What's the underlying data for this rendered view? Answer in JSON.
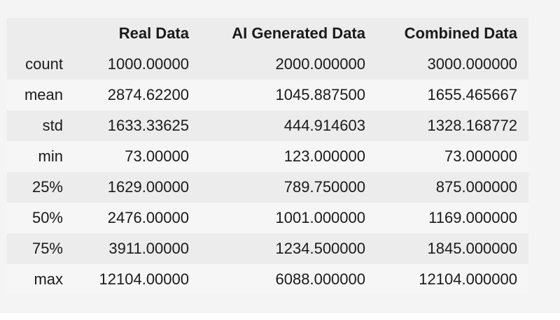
{
  "table": {
    "columns": [
      "",
      "Real Data",
      "AI Generated Data",
      "Combined Data"
    ],
    "rows": [
      {
        "label": "count",
        "values": [
          "1000.00000",
          "2000.000000",
          "3000.000000"
        ]
      },
      {
        "label": "mean",
        "values": [
          "2874.62200",
          "1045.887500",
          "1655.465667"
        ]
      },
      {
        "label": "std",
        "values": [
          "1633.33625",
          "444.914603",
          "1328.168772"
        ]
      },
      {
        "label": "min",
        "values": [
          "73.00000",
          "123.000000",
          "73.000000"
        ]
      },
      {
        "label": "25%",
        "values": [
          "1629.00000",
          "789.750000",
          "875.000000"
        ]
      },
      {
        "label": "50%",
        "values": [
          "2476.00000",
          "1001.000000",
          "1169.000000"
        ]
      },
      {
        "label": "75%",
        "values": [
          "3911.00000",
          "1234.500000",
          "1845.000000"
        ]
      },
      {
        "label": "max",
        "values": [
          "12104.00000",
          "6088.000000",
          "12104.000000"
        ]
      }
    ]
  }
}
